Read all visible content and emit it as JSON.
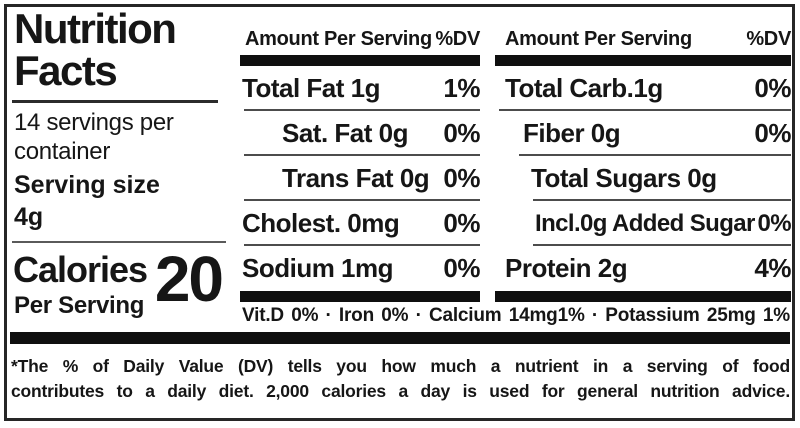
{
  "colors": {
    "text": "#161616",
    "thin_line": "#4c4c4c",
    "thick_bar": "#0f0f0f",
    "border": "#262626",
    "background": "#ffffff"
  },
  "left_panel": {
    "title_line1": "Nutrition",
    "title_line2": "Facts",
    "servings_line1": "14 servings per",
    "servings_line2": "container",
    "serving_size_label": "Serving size",
    "serving_size_value": "4g",
    "calories_label": "Calories",
    "calories_sublabel": "Per Serving",
    "calories_value": "20"
  },
  "columns": [
    {
      "header": {
        "amount": "Amount Per Serving",
        "dv": "%DV"
      },
      "rows": [
        {
          "label": "Total Fat 1g",
          "dv": "1%"
        },
        {
          "label": "Sat. Fat 0g",
          "dv": "0%"
        },
        {
          "label": "Trans Fat 0g",
          "dv": "0%"
        },
        {
          "label": "Cholest. 0mg",
          "dv": "0%"
        },
        {
          "label": "Sodium 1mg",
          "dv": "0%"
        }
      ]
    },
    {
      "header": {
        "amount": "Amount Per Serving",
        "dv": "%DV"
      },
      "rows": [
        {
          "label": "Total Carb.1g",
          "dv": "0%"
        },
        {
          "label": "Fiber 0g",
          "dv": "0%"
        },
        {
          "label": "Total Sugars 0g",
          "dv": ""
        },
        {
          "label": "Incl.0g Added Sugar",
          "dv": "0%"
        },
        {
          "label": "Protein 2g",
          "dv": "4%"
        }
      ]
    }
  ],
  "micronutrients": "Vit.D 0% · Iron 0% · Calcium 14mg1% · Potassium 25mg 1%",
  "footnote": {
    "line1": "*The % of Daily Value (DV) tells you how much a nutrient in a serving of food",
    "line2": "contributes to a daily diet. 2,000 calories a day is used for general nutrition advice."
  }
}
